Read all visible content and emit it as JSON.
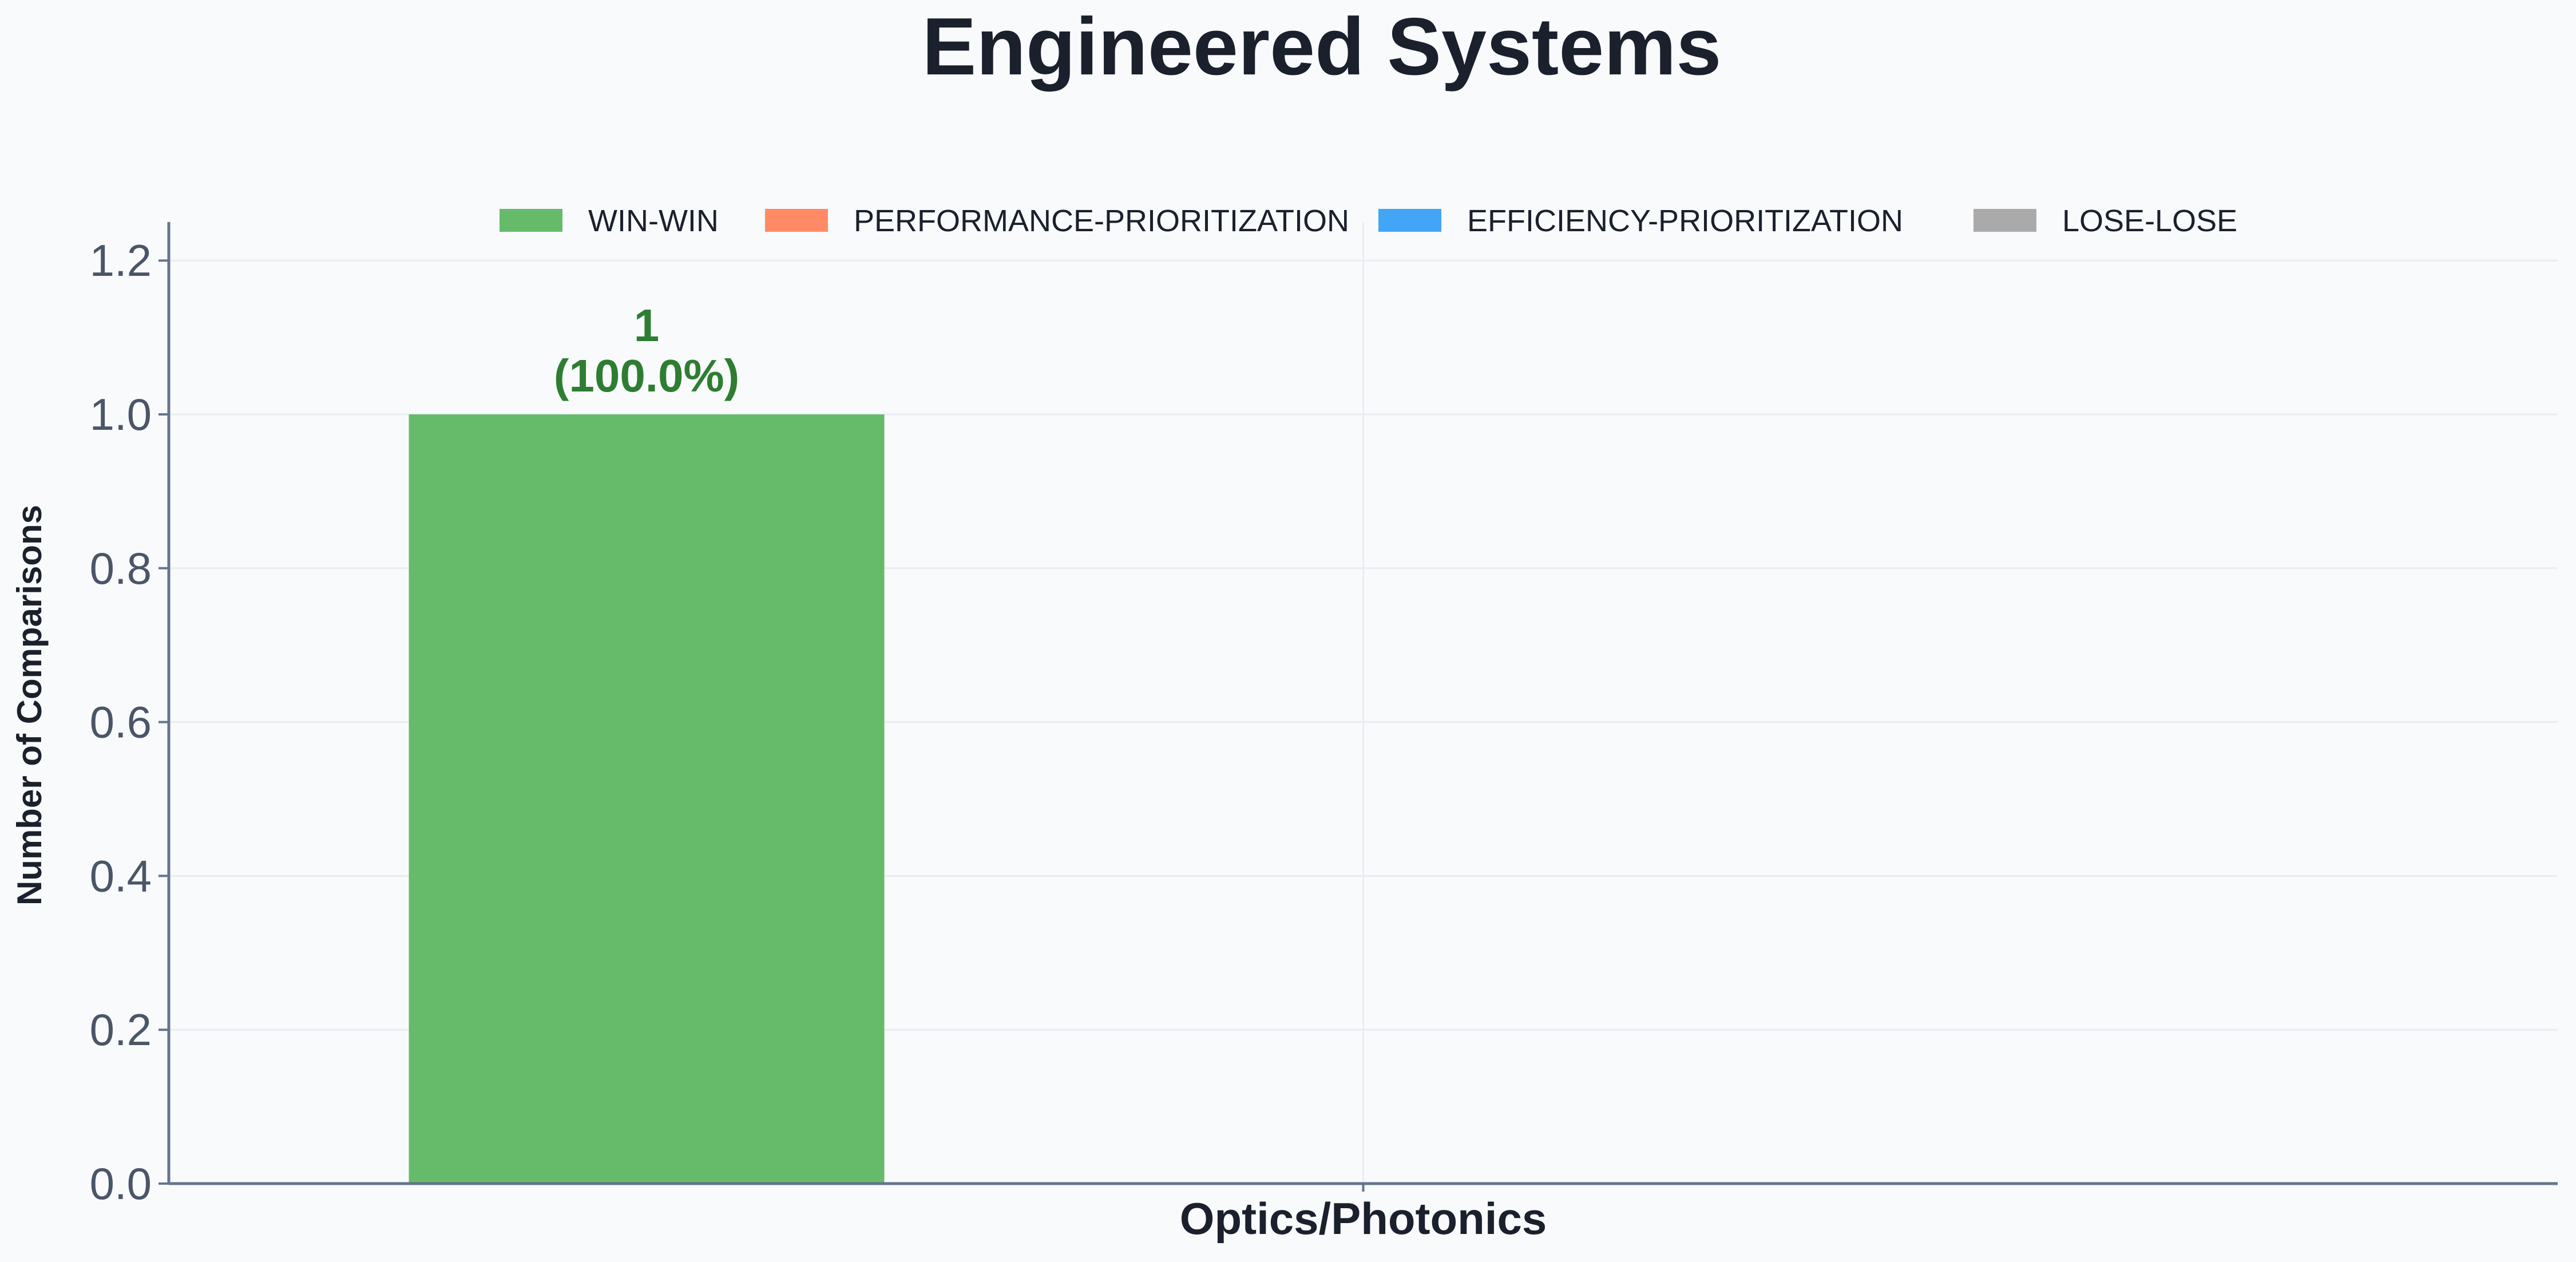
{
  "chart_data": {
    "type": "bar",
    "title": "Engineered Systems",
    "xlabel": "",
    "ylabel": "Number of Comparisons",
    "categories": [
      "Optics/Photonics"
    ],
    "ylim": [
      0,
      1.25
    ],
    "yticks": [
      "0.0",
      "0.2",
      "0.4",
      "0.6",
      "0.8",
      "1.0",
      "1.2"
    ],
    "grid": true,
    "legend_position": "top-center",
    "series": [
      {
        "name": "WIN-WIN",
        "color": "#66bb6a",
        "values": [
          1
        ],
        "label_color": "#2e7d32",
        "data_labels": [
          "1",
          "(100.0%)"
        ]
      },
      {
        "name": "PERFORMANCE-PRIORITIZATION",
        "color": "#ff8a65",
        "values": [
          0
        ]
      },
      {
        "name": "EFFICIENCY-PRIORITIZATION",
        "color": "#42a5f5",
        "values": [
          0
        ]
      },
      {
        "name": "LOSE-LOSE",
        "color": "#aaaaaa",
        "values": [
          0
        ]
      }
    ]
  }
}
